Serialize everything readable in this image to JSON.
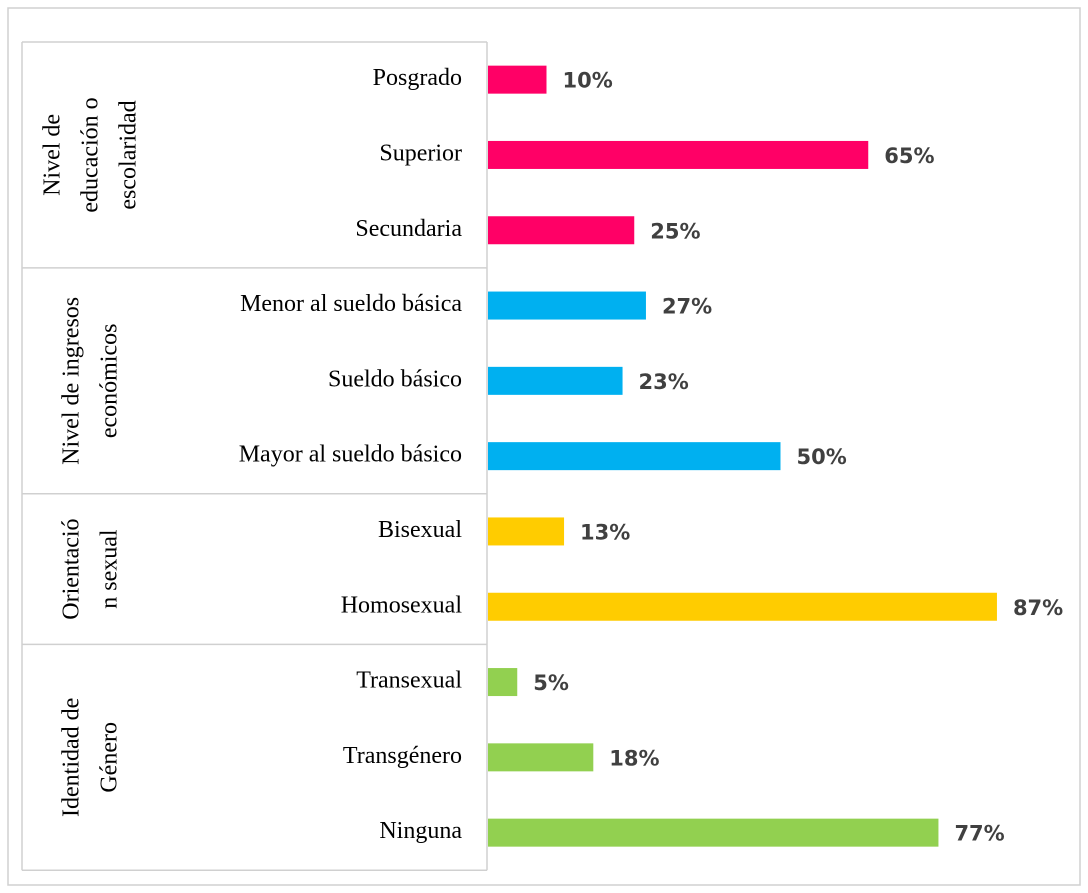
{
  "chart_data": {
    "type": "bar",
    "orientation": "horizontal",
    "xlim": [
      0,
      100
    ],
    "groups": [
      {
        "name": [
          "Nivel de",
          "educación o",
          "escolaridad"
        ],
        "color": "#ff0066",
        "categories": [
          "Posgrado",
          "Superior",
          "Secundaria"
        ],
        "values": [
          10,
          65,
          25
        ],
        "value_labels": [
          "10%",
          "65%",
          "25%"
        ]
      },
      {
        "name": [
          "Nivel de ingresos",
          "económicos"
        ],
        "color": "#00b0f0",
        "categories": [
          "Menor al sueldo básica",
          "Sueldo básico",
          "Mayor al sueldo básico"
        ],
        "values": [
          27,
          23,
          50
        ],
        "value_labels": [
          "27%",
          "23%",
          "50%"
        ]
      },
      {
        "name": [
          "Orientació",
          "n sexual"
        ],
        "color": "#ffcc00",
        "categories": [
          "Bisexual",
          "Homosexual"
        ],
        "values": [
          13,
          87
        ],
        "value_labels": [
          "13%",
          "87%"
        ]
      },
      {
        "name": [
          "Identidad de",
          "Género"
        ],
        "color": "#92d050",
        "categories": [
          "Transexual",
          "Transgénero",
          "Ninguna"
        ],
        "values": [
          5,
          18,
          77
        ],
        "value_labels": [
          "5%",
          "18%",
          "77%"
        ]
      }
    ]
  }
}
